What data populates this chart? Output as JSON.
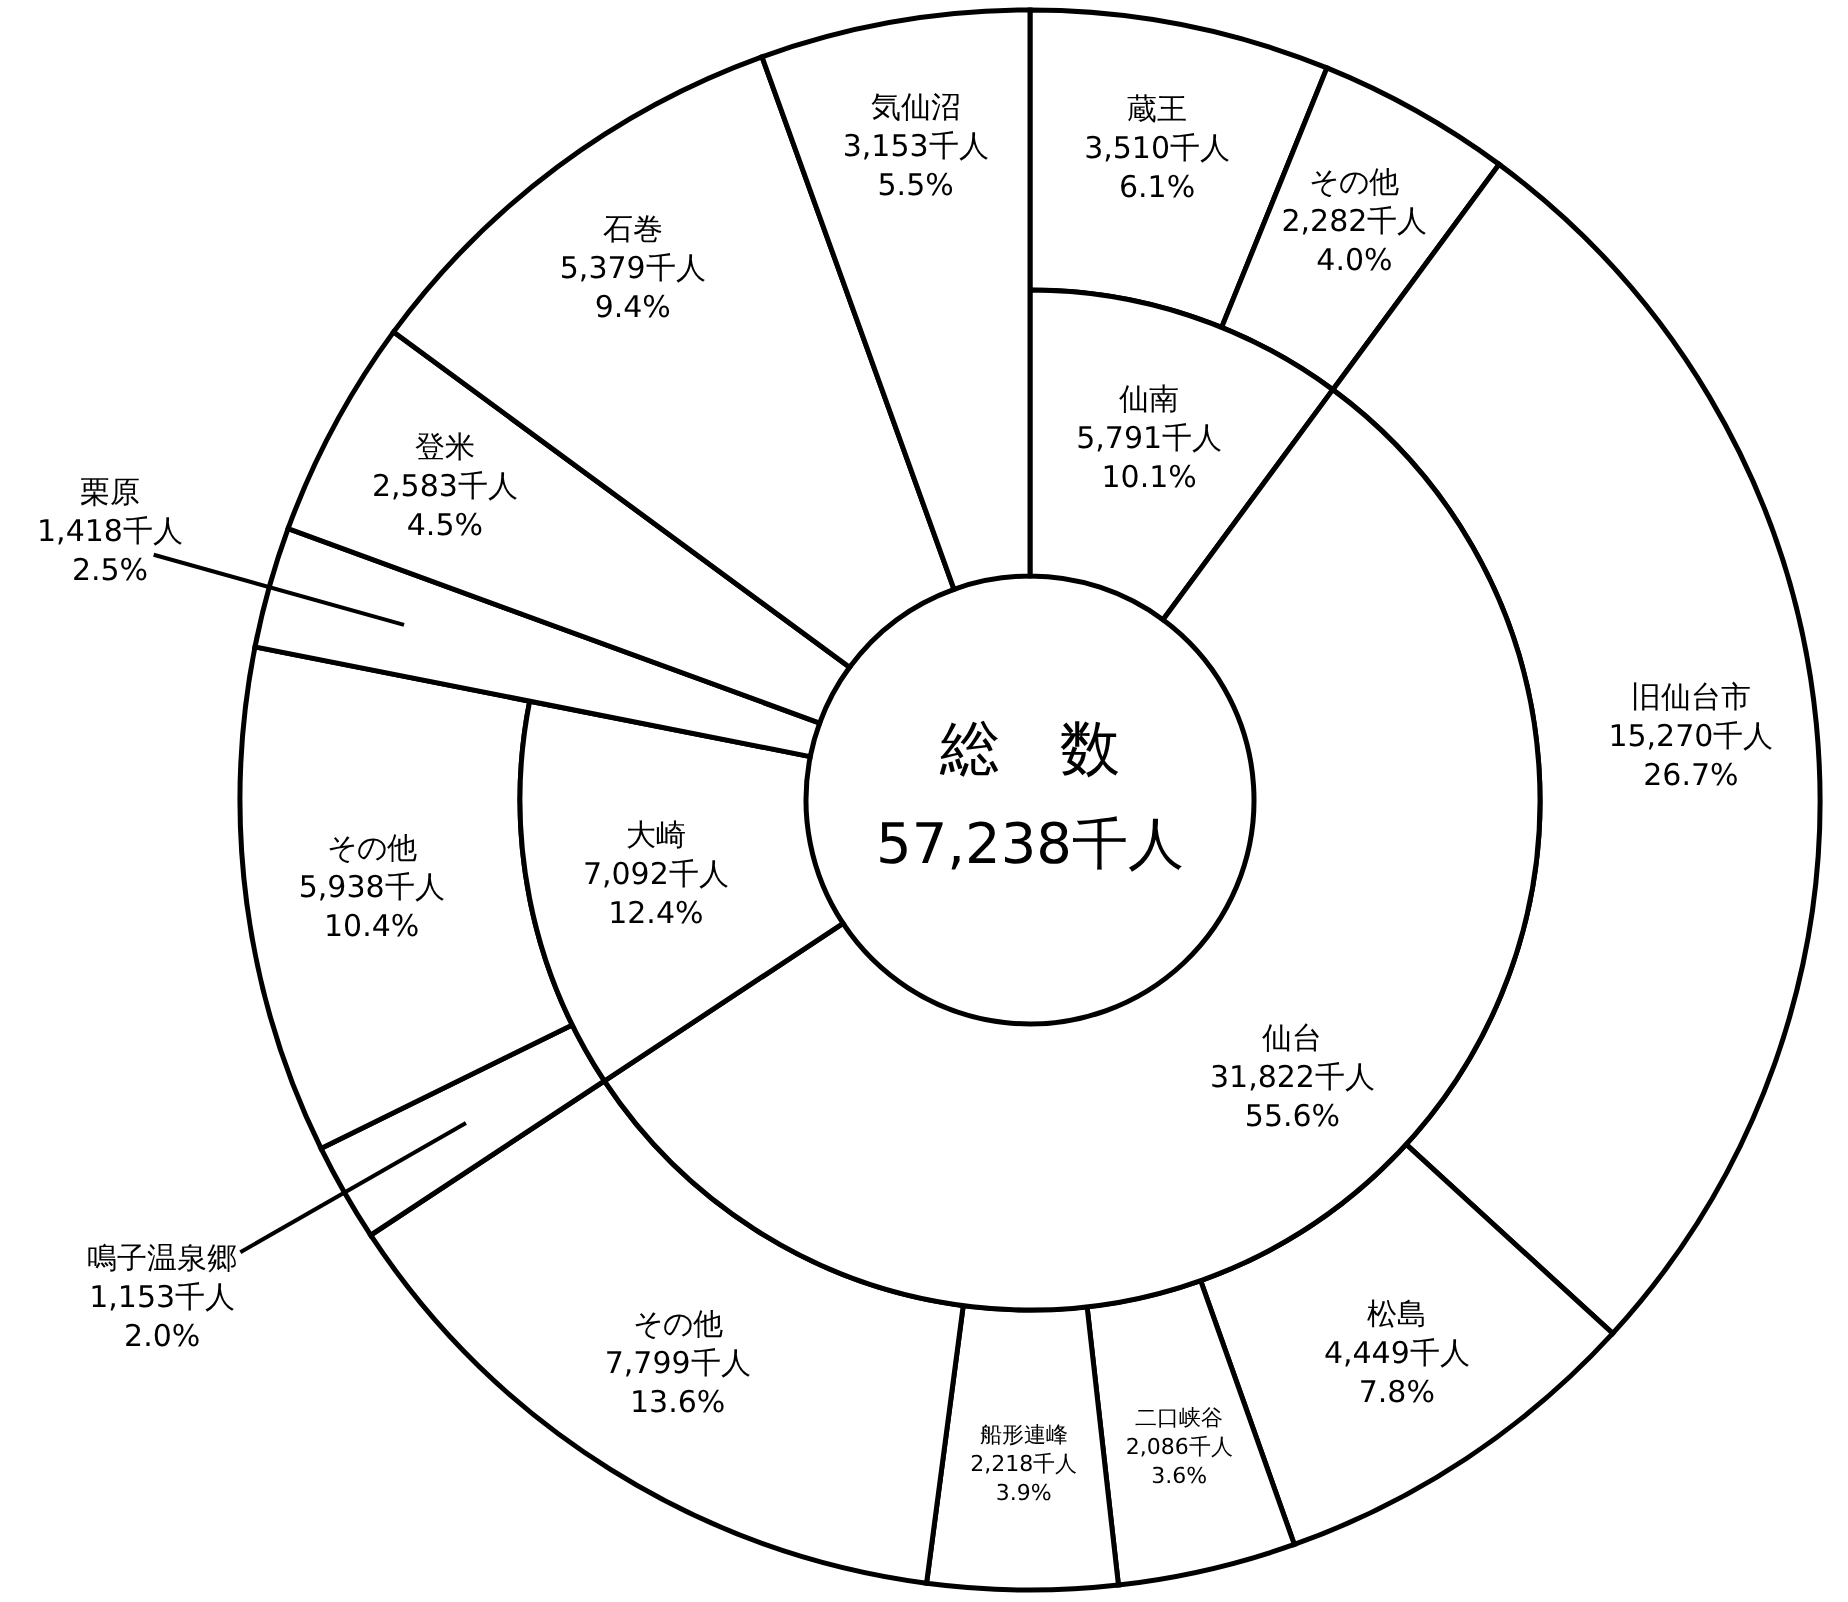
{
  "chart_data": [
    {
      "type": "other",
      "title": "総　数",
      "subtitle": "57,238千人",
      "categories": [
        "仙南",
        "仙台",
        "大崎",
        "栗原",
        "登米",
        "石巻",
        "気仙沼"
      ],
      "values": [
        5791,
        31822,
        7092,
        1418,
        2583,
        5379,
        3153
      ],
      "value_labels": [
        "5,791千人 10.1%",
        "31,822千人 55.6%",
        "7,092千人 12.4%",
        "1,418千人 2.5%",
        "2,583千人 4.5%",
        "5,379千人 9.4%",
        "3,153千人 5.5%"
      ],
      "colors": [
        "#ffffff",
        "#ffffff",
        "#ffffff",
        "#ffffff",
        "#ffffff",
        "#ffffff",
        "#ffffff"
      ]
    },
    {
      "type": "other",
      "categories": [
        "蔵王",
        "その他",
        "旧仙台市",
        "松島",
        "二口峡谷",
        "船形連峰",
        "その他",
        "鳴子温泉郷",
        "その他",
        null,
        null,
        null,
        null
      ],
      "values": [
        3510,
        2282,
        15270,
        4449,
        2086,
        2218,
        7799,
        1153,
        5938,
        null,
        null,
        null,
        null
      ],
      "value_labels": [
        "3,510千人 6.1%",
        "2,282千人 4.0%",
        "15,270千人 26.7%",
        "4,449千人 7.8%",
        "2,086千人 3.6%",
        "2,218千人 3.9%",
        "7,799千人 13.6%",
        "1,153千人 2.0%",
        "5,938千人 10.4%",
        null,
        null,
        null,
        null
      ],
      "colors": [
        "#ffffff",
        "#ffffff",
        "#ffffff",
        "#ffffff",
        "#ffffff",
        "#ffffff",
        "#ffffff",
        "#ffffff",
        "#ffffff",
        null,
        null,
        null,
        null
      ]
    }
  ]
}
